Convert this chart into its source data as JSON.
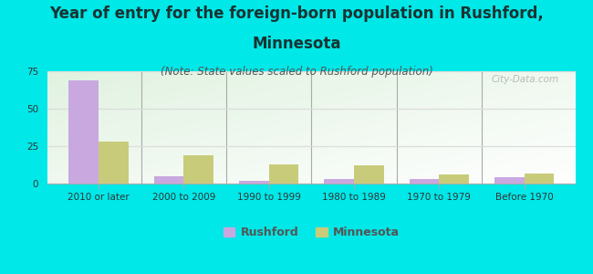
{
  "title_line1": "Year of entry for the foreign-born population in Rushford,",
  "title_line2": "Minnesota",
  "subtitle": "(Note: State values scaled to Rushford population)",
  "categories": [
    "2010 or later",
    "2000 to 2009",
    "1990 to 1999",
    "1980 to 1989",
    "1970 to 1979",
    "Before 1970"
  ],
  "rushford_values": [
    69,
    5,
    2,
    3,
    3,
    4
  ],
  "minnesota_values": [
    28,
    19,
    13,
    12,
    6,
    7
  ],
  "rushford_color": "#c9a8e0",
  "minnesota_color": "#c8cc7a",
  "background_color": "#00e8e8",
  "ylim": [
    0,
    75
  ],
  "yticks": [
    0,
    25,
    50,
    75
  ],
  "bar_width": 0.35,
  "title_fontsize": 12,
  "subtitle_fontsize": 8.5,
  "tick_fontsize": 7.5,
  "legend_fontsize": 9,
  "watermark": "City-Data.com"
}
